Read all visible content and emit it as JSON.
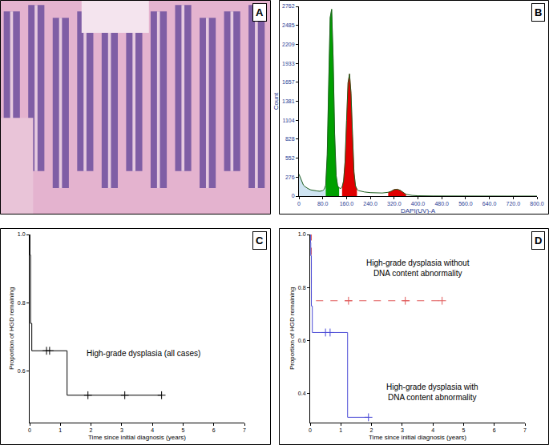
{
  "chart_data": [
    {
      "type": "image",
      "title": "A"
    },
    {
      "type": "area",
      "title": "B",
      "x_label": "DAPI(UV)-A",
      "y_label": "Count",
      "xlim": [
        0,
        800
      ],
      "xticks": [
        0,
        {
          "value": 80,
          "label": "80.0"
        },
        {
          "value": 160,
          "label": "160.0"
        },
        {
          "value": 240,
          "label": "240.0"
        },
        {
          "value": 320,
          "label": "320.0"
        },
        {
          "value": 400,
          "label": "400.0"
        },
        {
          "value": 480,
          "label": "480.0"
        },
        {
          "value": 560,
          "label": "560.0"
        },
        {
          "value": 640,
          "label": "640.0"
        },
        {
          "value": 720,
          "label": "720.0"
        },
        {
          "value": 800,
          "label": "800.0"
        }
      ],
      "ylim": [
        0,
        2762
      ],
      "yticks": [
        0,
        276,
        552,
        828,
        1104,
        1381,
        1657,
        1933,
        2209,
        2485,
        2762
      ],
      "grid": false,
      "series": [
        {
          "type": "area",
          "color": "#cfe4f2",
          "x": [
            0,
            5,
            10,
            15,
            20,
            25,
            30,
            40,
            50,
            60,
            70,
            80,
            85,
            90
          ],
          "values": [
            320,
            260,
            200,
            160,
            140,
            120,
            110,
            90,
            80,
            75,
            70,
            80,
            100,
            160
          ]
        },
        {
          "type": "area",
          "color": "#00a000",
          "x": [
            90,
            95,
            100,
            105,
            110,
            115,
            120,
            125,
            130,
            135
          ],
          "values": [
            160,
            600,
            1700,
            2600,
            2720,
            2000,
            900,
            300,
            150,
            120
          ]
        },
        {
          "type": "area",
          "color": "#e00000",
          "x": [
            145,
            150,
            155,
            160,
            165,
            170,
            175,
            180,
            185,
            190,
            195
          ],
          "values": [
            130,
            220,
            500,
            1100,
            1650,
            1780,
            1500,
            900,
            350,
            150,
            100
          ]
        },
        {
          "type": "area",
          "color": "#e00000",
          "x": [
            300,
            310,
            320,
            330,
            340,
            350,
            360
          ],
          "values": [
            55,
            70,
            95,
            100,
            85,
            50,
            25
          ]
        },
        {
          "type": "line",
          "color": "#1e5e1e",
          "line_style": "solid",
          "x": [
            0,
            5,
            10,
            15,
            20,
            25,
            30,
            40,
            50,
            60,
            70,
            80,
            85,
            90,
            95,
            100,
            105,
            110,
            115,
            120,
            125,
            130,
            135,
            140,
            145,
            150,
            155,
            160,
            165,
            170,
            175,
            180,
            185,
            190,
            195,
            200,
            220,
            240,
            260,
            280,
            300,
            310,
            320,
            330,
            340,
            350,
            360,
            380,
            400,
            450,
            500,
            600,
            700,
            800
          ],
          "values": [
            320,
            260,
            200,
            160,
            140,
            120,
            110,
            90,
            80,
            75,
            70,
            80,
            100,
            160,
            600,
            1700,
            2600,
            2720,
            2000,
            900,
            300,
            150,
            120,
            110,
            130,
            220,
            500,
            1100,
            1650,
            1780,
            1500,
            900,
            350,
            150,
            100,
            80,
            60,
            50,
            45,
            45,
            55,
            70,
            95,
            100,
            85,
            50,
            25,
            10,
            5,
            2,
            0,
            0,
            0,
            0
          ]
        }
      ]
    },
    {
      "type": "step",
      "title": "C",
      "x_label": "Time since initial diagnosis (years)",
      "y_label": "Proportion of HGD remaining",
      "xlim": [
        0,
        7
      ],
      "xticks": [
        0,
        1,
        2,
        3,
        4,
        5,
        6,
        7
      ],
      "ylim": [
        0.45,
        1
      ],
      "yticks": [
        0.6,
        0.8,
        {
          "value": 1,
          "label": "1.0"
        }
      ],
      "grid": false,
      "annotations": [
        "High-grade dysplasia (all cases)"
      ],
      "series": [
        {
          "type": "step",
          "color": "#000000",
          "line_style": "solid",
          "x": [
            0,
            0.01,
            0.03,
            0.07,
            1.22,
            4.3
          ],
          "values": [
            1,
            0.94,
            0.74,
            0.66,
            0.53,
            0.53
          ]
        },
        {
          "type": "scatter",
          "color": "#000000",
          "marker": "plus",
          "x": [
            0.55,
            0.65,
            1.9,
            3.1,
            4.3
          ],
          "values": [
            0.66,
            0.66,
            0.53,
            0.53,
            0.53
          ]
        }
      ]
    },
    {
      "type": "step",
      "title": "D",
      "x_label": "Time since initial diagnosis (years)",
      "y_label": "Proportion of HGD remaining",
      "xlim": [
        0,
        7
      ],
      "xticks": [
        0,
        1,
        2,
        3,
        4,
        5,
        6,
        7
      ],
      "ylim": [
        0.29,
        1
      ],
      "yticks": [
        0.4,
        0.6,
        0.8,
        {
          "value": 1,
          "label": "1.0"
        }
      ],
      "grid": false,
      "annotations": [
        "High-grade dysplasia without\nDNA content abnormality",
        "High-grade dysplasia with\nDNA content abnormality"
      ],
      "series": [
        {
          "type": "step",
          "color": "#e05a5a",
          "line_style": "dashed",
          "x": [
            0,
            0.04,
            4.3
          ],
          "values": [
            1,
            0.75,
            0.75
          ]
        },
        {
          "type": "scatter",
          "color": "#e05a5a",
          "marker": "plus",
          "x": [
            1.25,
            3.1,
            4.3
          ],
          "values": [
            0.75,
            0.75,
            0.75
          ]
        },
        {
          "type": "step",
          "color": "#4b4bd6",
          "line_style": "solid",
          "x": [
            0,
            0.01,
            0.02,
            0.04,
            0.07,
            1.22,
            1.9
          ],
          "values": [
            1,
            0.97,
            0.92,
            0.73,
            0.63,
            0.31,
            0.31
          ]
        },
        {
          "type": "scatter",
          "color": "#4b4bd6",
          "marker": "plus",
          "x": [
            0.5,
            0.65,
            1.9
          ],
          "values": [
            0.63,
            0.63,
            0.31
          ]
        }
      ]
    }
  ]
}
